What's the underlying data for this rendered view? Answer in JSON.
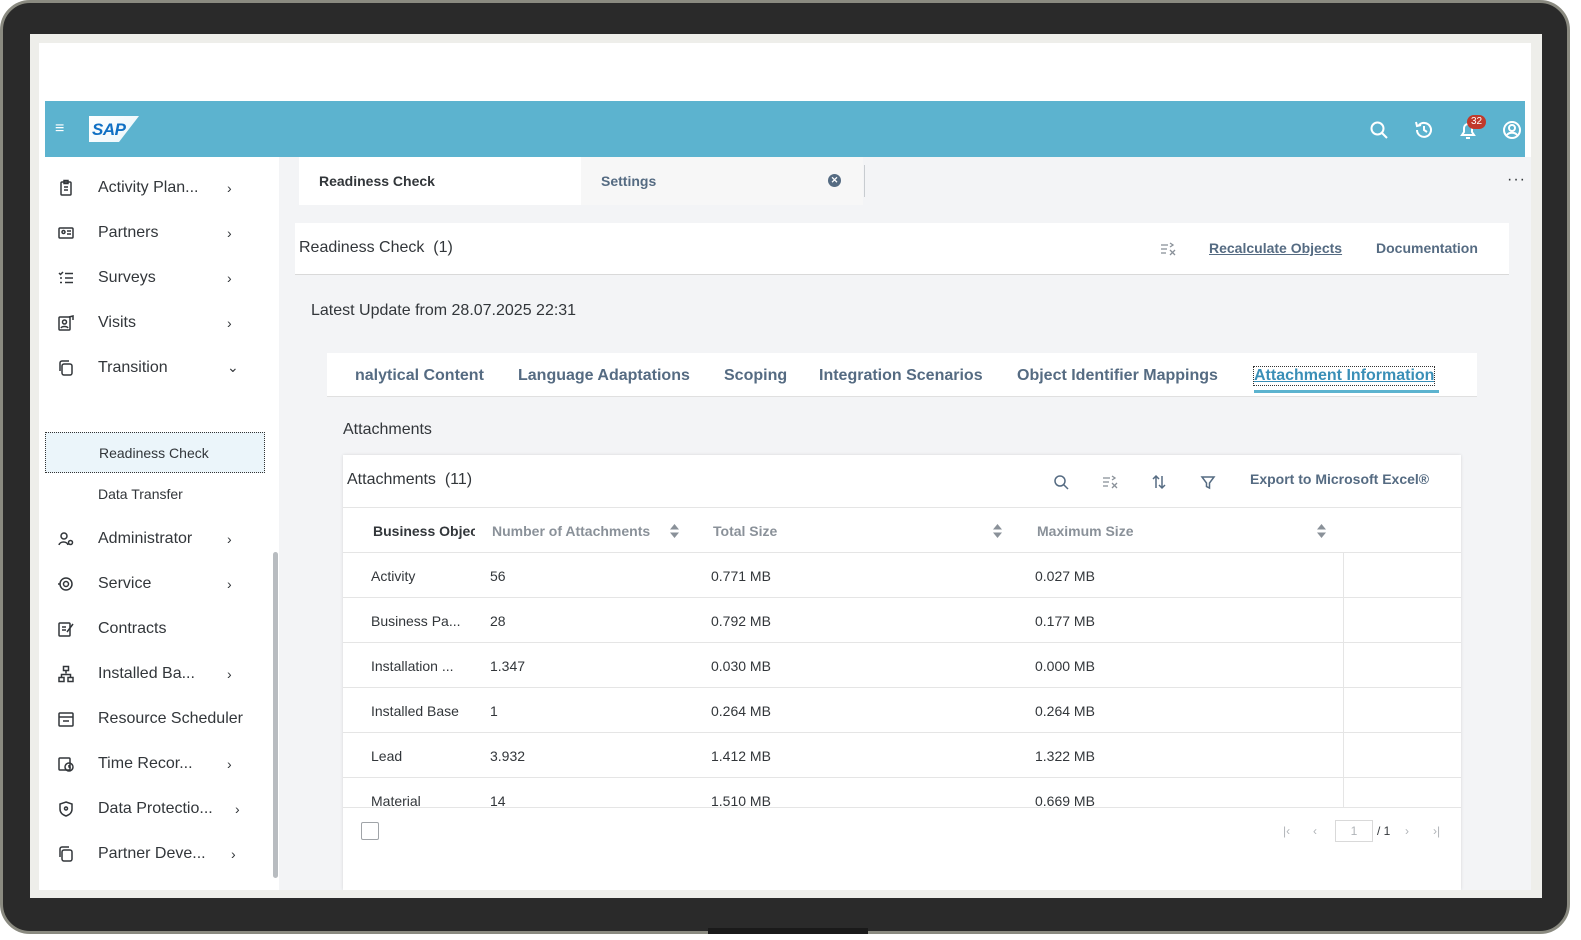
{
  "shell": {
    "logo": "SAP",
    "notification_count": "32"
  },
  "sidebar": {
    "items": [
      {
        "label": "Activity Plan...",
        "icon": "clipboard-icon",
        "chevron": "›"
      },
      {
        "label": "Partners",
        "icon": "contact-card-icon",
        "chevron": "›"
      },
      {
        "label": "Surveys",
        "icon": "survey-list-icon",
        "chevron": "›"
      },
      {
        "label": "Visits",
        "icon": "visit-icon",
        "chevron": "›"
      },
      {
        "label": "Transition",
        "icon": "transition-icon",
        "chevron": "⌄"
      },
      {
        "label": "Administrator",
        "icon": "admin-icon",
        "chevron": "›"
      },
      {
        "label": "Service",
        "icon": "service-icon",
        "chevron": "›"
      },
      {
        "label": "Contracts",
        "icon": "contract-icon",
        "chevron": ""
      },
      {
        "label": "Installed Ba...",
        "icon": "hierarchy-icon",
        "chevron": "›"
      },
      {
        "label": "Resource Scheduler",
        "icon": "scheduler-icon",
        "chevron": ""
      },
      {
        "label": "Time Recor...",
        "icon": "time-record-icon",
        "chevron": "›"
      },
      {
        "label": "Data Protectio...",
        "icon": "shield-icon",
        "chevron": "›"
      },
      {
        "label": "Partner Deve...",
        "icon": "partner-dev-icon",
        "chevron": "›"
      }
    ],
    "sub_items": [
      {
        "label": "Readiness Check",
        "selected": true
      },
      {
        "label": "Data Transfer",
        "selected": false
      }
    ]
  },
  "tabs": {
    "active": "Readiness Check",
    "settings": "Settings"
  },
  "panel": {
    "title": "Readiness Check",
    "count": "(1)",
    "recalculate": "Recalculate Objects",
    "documentation": "Documentation",
    "latest_update": "Latest Update from 28.07.2025 22:31"
  },
  "sub_tabs": [
    "nalytical Content",
    "Language Adaptations",
    "Scoping",
    "Integration Scenarios",
    "Object Identifier Mappings",
    "Attachment Information"
  ],
  "section_title": "Attachments",
  "table": {
    "title": "Attachments",
    "count": "(11)",
    "export_label": "Export to Microsoft Excel®",
    "columns": [
      "Business Objec",
      "Number of Attachments",
      "Total Size",
      "Maximum Size"
    ],
    "rows": [
      [
        "Activity",
        "56",
        "0.771 MB",
        "0.027 MB"
      ],
      [
        "Business Pa...",
        "28",
        "0.792 MB",
        "0.177 MB"
      ],
      [
        "Installation ...",
        "1.347",
        "0.030 MB",
        "0.000 MB"
      ],
      [
        "Installed Base",
        "1",
        "0.264 MB",
        "0.264 MB"
      ],
      [
        "Lead",
        "3.932",
        "1.412 MB",
        "1.322 MB"
      ],
      [
        "Material",
        "14",
        "1.510 MB",
        "0.669 MB"
      ]
    ],
    "pager": {
      "current": "1",
      "total": "/ 1"
    }
  },
  "colors": {
    "shell": "#5cb3cf",
    "accent": "#3a8fb7",
    "text": "#32363a",
    "muted": "#556b82"
  }
}
